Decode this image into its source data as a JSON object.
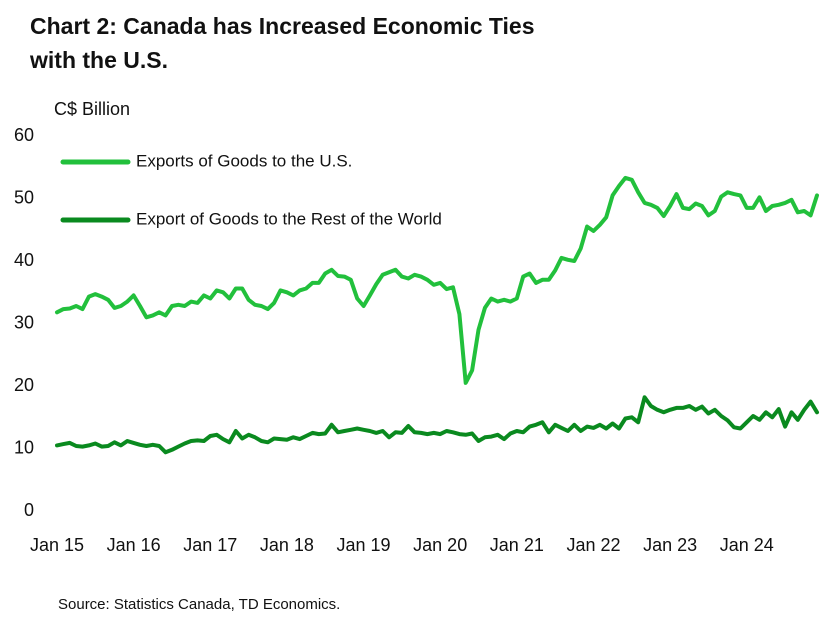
{
  "chart_data": {
    "type": "line",
    "title": [
      "Chart 2: Canada has Increased Economic Ties",
      "with the U.S."
    ],
    "y_label": "C$ Billion",
    "source": "Source: Statistics Canada, TD Economics.",
    "categories": [
      "Jan 15",
      null,
      null,
      null,
      null,
      null,
      null,
      null,
      null,
      null,
      null,
      null,
      "Jan 16",
      null,
      null,
      null,
      null,
      null,
      null,
      null,
      null,
      null,
      null,
      null,
      "Jan 17",
      null,
      null,
      null,
      null,
      null,
      null,
      null,
      null,
      null,
      null,
      null,
      "Jan 18",
      null,
      null,
      null,
      null,
      null,
      null,
      null,
      null,
      null,
      null,
      null,
      "Jan 19",
      null,
      null,
      null,
      null,
      null,
      null,
      null,
      null,
      null,
      null,
      null,
      "Jan 20",
      null,
      null,
      null,
      null,
      null,
      null,
      null,
      null,
      null,
      null,
      null,
      "Jan 21",
      null,
      null,
      null,
      null,
      null,
      null,
      null,
      null,
      null,
      null,
      null,
      "Jan 22",
      null,
      null,
      null,
      null,
      null,
      null,
      null,
      null,
      null,
      null,
      null,
      "Jan 23",
      null,
      null,
      null,
      null,
      null,
      null,
      null,
      null,
      null,
      null,
      null,
      "Jan 24",
      null,
      null,
      null,
      null,
      null,
      null,
      null,
      null,
      null,
      null,
      null
    ],
    "series": [
      {
        "name": "Exports of Goods to the U.S.",
        "color": "#22c03c",
        "values": [
          31.8,
          32.3,
          32.4,
          32.8,
          32.3,
          34.3,
          34.7,
          34.3,
          33.8,
          32.5,
          32.8,
          33.5,
          34.5,
          32.8,
          31.0,
          31.3,
          31.8,
          31.3,
          32.8,
          33.0,
          32.8,
          33.5,
          33.3,
          34.5,
          34.0,
          35.3,
          35.0,
          34.0,
          35.6,
          35.6,
          33.8,
          33.0,
          32.8,
          32.3,
          33.3,
          35.3,
          35.0,
          34.5,
          35.3,
          35.6,
          36.5,
          36.5,
          38.0,
          38.6,
          37.6,
          37.5,
          37.0,
          34.0,
          32.8,
          34.5,
          36.3,
          37.8,
          38.2,
          38.6,
          37.5,
          37.2,
          37.8,
          37.5,
          37.0,
          36.2,
          36.5,
          35.5,
          35.8,
          31.5,
          20.5,
          22.5,
          29.0,
          32.5,
          34.0,
          33.5,
          33.8,
          33.5,
          34.0,
          37.5,
          38.0,
          36.5,
          37.0,
          37.0,
          38.5,
          40.5,
          40.2,
          40.0,
          42.0,
          45.5,
          44.8,
          45.8,
          47.0,
          50.5,
          52.0,
          53.3,
          53.0,
          51.0,
          49.3,
          49.0,
          48.5,
          47.2,
          48.8,
          50.7,
          48.5,
          48.3,
          49.2,
          48.8,
          47.3,
          48.0,
          50.3,
          51.0,
          50.7,
          50.5,
          48.5,
          48.5,
          50.2,
          48.0,
          48.8,
          49.0,
          49.3,
          49.8,
          47.8,
          48.0,
          47.3,
          50.5
        ]
      },
      {
        "name": "Export of Goods to the Rest of the World",
        "color": "#0a8a1f",
        "values": [
          10.5,
          10.7,
          10.9,
          10.4,
          10.3,
          10.5,
          10.8,
          10.3,
          10.4,
          11.0,
          10.5,
          11.2,
          10.9,
          10.6,
          10.4,
          10.6,
          10.4,
          9.4,
          9.8,
          10.3,
          10.8,
          11.2,
          11.3,
          11.2,
          12.0,
          12.2,
          11.5,
          11.0,
          12.8,
          11.6,
          12.2,
          11.8,
          11.2,
          11.0,
          11.6,
          11.5,
          11.4,
          11.8,
          11.5,
          12.0,
          12.5,
          12.3,
          12.4,
          13.8,
          12.6,
          12.8,
          13.0,
          13.2,
          13.0,
          12.8,
          12.5,
          12.8,
          11.8,
          12.6,
          12.5,
          13.6,
          12.6,
          12.5,
          12.3,
          12.5,
          12.3,
          12.8,
          12.6,
          12.3,
          12.2,
          12.4,
          11.2,
          11.8,
          11.9,
          12.2,
          11.5,
          12.4,
          12.8,
          12.6,
          13.5,
          13.8,
          14.2,
          12.6,
          13.8,
          13.3,
          12.8,
          13.8,
          12.8,
          13.5,
          13.3,
          13.8,
          13.2,
          14.0,
          13.2,
          14.8,
          15.0,
          14.2,
          18.2,
          16.8,
          16.2,
          15.8,
          16.2,
          16.5,
          16.5,
          16.8,
          16.2,
          16.7,
          15.6,
          16.2,
          15.2,
          14.5,
          13.4,
          13.2,
          14.2,
          15.2,
          14.6,
          15.8,
          15.0,
          16.3,
          13.5,
          15.8,
          14.6,
          16.2,
          17.5,
          15.8
        ]
      }
    ],
    "ylim": [
      0,
      60
    ],
    "yticks": [
      0,
      10,
      20,
      30,
      40,
      50,
      60
    ],
    "grid": false,
    "legend": "top-left"
  }
}
